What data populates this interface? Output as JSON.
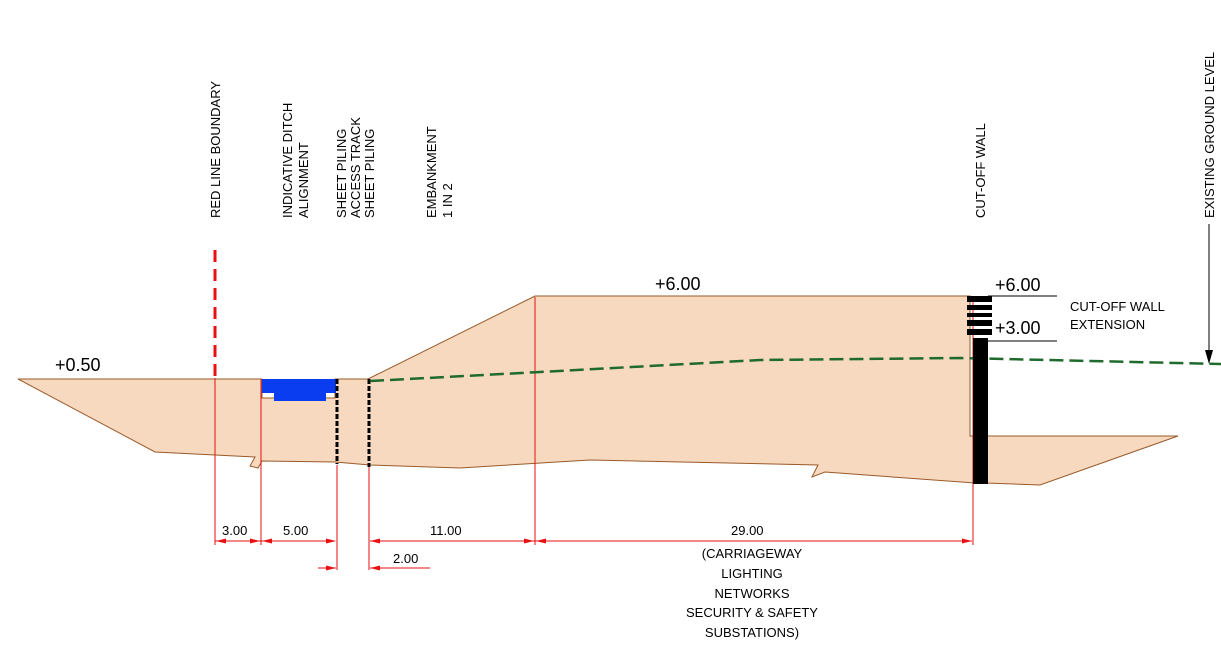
{
  "labels": {
    "red_line_boundary": "RED LINE BOUNDARY",
    "ditch_line1": "INDICATIVE DITCH",
    "ditch_line2": "ALIGNMENT",
    "sheet_line1": "SHEET PILING",
    "sheet_line2": "ACCESS TRACK",
    "sheet_line3": "SHEET PILING",
    "embankment_line1": "EMBANKMENT",
    "embankment_line2": "1 IN 2",
    "cutoff_wall": "CUT-OFF WALL",
    "existing_ground": "EXISTING GROUND LEVEL",
    "extension_line1": "CUT-OFF WALL",
    "extension_line2": "EXTENSION"
  },
  "levels": {
    "left": "+0.50",
    "crest": "+6.00",
    "wall_top": "+6.00",
    "wall_mid": "+3.00"
  },
  "dimensions": {
    "d1": "3.00",
    "d2": "5.00",
    "d3": "11.00",
    "d4": "2.00",
    "d5": "29.00"
  },
  "carriageway_note": [
    "(CARRIAGEWAY",
    "LIGHTING",
    "NETWORKS",
    "SECURITY & SAFETY",
    "SUBSTATIONS)"
  ],
  "colors": {
    "fill": "#f6d9bf",
    "outline": "#9a5a2a",
    "red": "#e81010",
    "ditch": "#0a3cf0",
    "ground": "#1f6b2e"
  }
}
